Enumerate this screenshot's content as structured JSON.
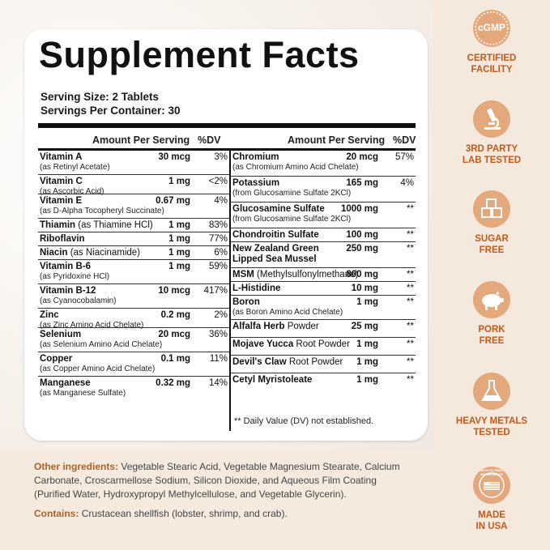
{
  "title": "Supplement Facts",
  "serving_size": "Serving Size: 2 Tablets",
  "servings_per_container": "Servings Per Container: 30",
  "headers": {
    "amount": "Amount Per Serving",
    "dv": "%DV"
  },
  "left_rows": [
    {
      "name": "Vitamin A",
      "inline": "",
      "note": "(as Retinyl Acetate)",
      "amount": "30 mcg",
      "dv": "3%"
    },
    {
      "name": "Vitamin C",
      "inline": "",
      "note": "(as Ascorbic Acid)",
      "amount": "1 mg",
      "dv": "<2%"
    },
    {
      "name": "Vitamin E",
      "inline": "",
      "note": "(as D-Alpha Tocopheryl Succinate)",
      "amount": "0.67 mg",
      "dv": "4%"
    },
    {
      "name": "Thiamin",
      "inline": " (as Thiamine HCl)",
      "note": "",
      "amount": "1 mg",
      "dv": "83%"
    },
    {
      "name": "Riboflavin",
      "inline": "",
      "note": "",
      "amount": "1 mg",
      "dv": "77%"
    },
    {
      "name": "Niacin",
      "inline": " (as Niacinamide)",
      "note": "",
      "amount": "1 mg",
      "dv": "6%"
    },
    {
      "name": "Vitamin B-6",
      "inline": "",
      "note": "(as Pyridoxine HCl)",
      "amount": "1 mg",
      "dv": "59%"
    },
    {
      "name": "Vitamin B-12",
      "inline": "",
      "note": "(as Cyanocobalamin)",
      "amount": "10 mcg",
      "dv": "417%"
    },
    {
      "name": "Zinc",
      "inline": "",
      "note": "(as Zinc Amino Acid Chelate)",
      "amount": "0.2 mg",
      "dv": "2%"
    },
    {
      "name": "Selenium",
      "inline": "",
      "note": "(as Selenium Amino Acid Chelate)",
      "amount": "20 mcg",
      "dv": "36%"
    },
    {
      "name": "Copper",
      "inline": "",
      "note": "(as Copper Amino Acid Chelate)",
      "amount": "0.1 mg",
      "dv": "11%"
    },
    {
      "name": "Manganese",
      "inline": "",
      "note": "(as Manganese Sulfate)",
      "amount": "0.32 mg",
      "dv": "14%"
    }
  ],
  "right_rows": [
    {
      "name": "Chromium",
      "inline": "",
      "note": "(as Chromium Amino Acid Chelate)",
      "amount": "20 mcg",
      "dv": "57%"
    },
    {
      "name": "Potassium",
      "inline": "",
      "note": "(from Glucosamine Sulfate 2KCl)",
      "amount": "165 mg",
      "dv": "4%"
    },
    {
      "name": "Glucosamine Sulfate",
      "inline": "",
      "note": "(from Glucosamine Sulfate 2KCl)",
      "amount": "1000 mg",
      "dv": "**"
    },
    {
      "name": "Chondroitin Sulfate",
      "inline": "",
      "note": "",
      "amount": "100 mg",
      "dv": "**"
    },
    {
      "name": "New Zealand Green",
      "inline": "",
      "note": "Lipped Sea Mussel",
      "amount": "250 mg",
      "dv": "**"
    },
    {
      "name": "MSM",
      "inline": " (Methylsulfonylmethane)",
      "note": "",
      "amount": "800 mg",
      "dv": "**"
    },
    {
      "name": "L-Histidine",
      "inline": "",
      "note": "",
      "amount": "10 mg",
      "dv": "**"
    },
    {
      "name": "Boron",
      "inline": "",
      "note": "(as Boron Amino Acid Chelate)",
      "amount": "1 mg",
      "dv": "**"
    },
    {
      "name": "Alfalfa Herb",
      "inline": " Powder",
      "note": "",
      "amount": "25 mg",
      "dv": "**"
    },
    {
      "name": "Mojave Yucca",
      "inline": " Root Powder",
      "note": "",
      "amount": "1 mg",
      "dv": "**"
    },
    {
      "name": "Devil's Claw",
      "inline": " Root Powder",
      "note": "",
      "amount": "1 mg",
      "dv": "**"
    },
    {
      "name": "Cetyl Myristoleate",
      "inline": "",
      "note": "",
      "amount": "1 mg",
      "dv": "**"
    }
  ],
  "footnote": "** Daily Value (DV) not established.",
  "other_ingredients": {
    "label": "Other ingredients:",
    "text": "Vegetable Stearic Acid, Vegetable Magnesium Stearate, Calcium Carbonate, Croscarmellose Sodium, Silicon Dioxide, and Aqueous Film Coating (Purified Water, Hydroxypropyl Methylcellulose, and Vegetable Glycerin)."
  },
  "contains": {
    "label": "Contains:",
    "text": "Crustacean shellfish (lobster, shrimp, and crab)."
  },
  "badges": [
    {
      "icon": "cgmp-seal-icon",
      "icon_text": "cGMP",
      "label": "CERTIFIED\nFACILITY"
    },
    {
      "icon": "microscope-icon",
      "icon_text": "",
      "label": "3RD PARTY\nLAB TESTED"
    },
    {
      "icon": "sugar-cubes-icon",
      "icon_text": "",
      "label": "SUGAR\nFREE"
    },
    {
      "icon": "pig-icon",
      "icon_text": "",
      "label": "PORK\nFREE"
    },
    {
      "icon": "flask-icon",
      "icon_text": "",
      "label": "HEAVY METALS\nTESTED"
    },
    {
      "icon": "usa-globe-icon",
      "icon_text": "WITH GLOBAL INGREDIENTS",
      "label": "MADE\nIN USA"
    }
  ],
  "colors": {
    "accent": "#c25a1c",
    "badge_circle": "#e3a97c",
    "ink": "#111111"
  }
}
